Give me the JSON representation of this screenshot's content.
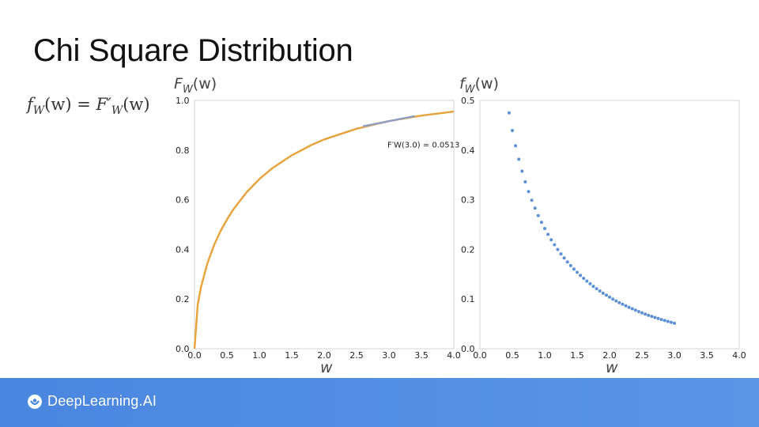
{
  "slide": {
    "title": "Chi Square Distribution",
    "formula": {
      "lhs": "f",
      "lhs_sub": "W",
      "arg": "(w)",
      "eq": " = ",
      "rhs": "F′",
      "rhs_sub": "W",
      "rhs_arg": "(w)"
    }
  },
  "footer": {
    "brand": "DeepLearning.AI",
    "logo_icon": "deeplearning-logo-icon"
  },
  "chart_data": [
    {
      "type": "line",
      "ylabel": "F_W(w)",
      "xlabel": "w",
      "xlim": [
        0,
        4.0
      ],
      "ylim": [
        0,
        1.0
      ],
      "xticks": [
        "0.0",
        "0.5",
        "1.0",
        "1.5",
        "2.0",
        "2.5",
        "3.0",
        "3.5",
        "4.0"
      ],
      "yticks": [
        "0.0",
        "0.2",
        "0.4",
        "0.6",
        "0.8",
        "1.0"
      ],
      "colors": {
        "curve": "#e8a33a",
        "tangent": "#8f9fc4"
      },
      "x": [
        0.0,
        0.05,
        0.1,
        0.2,
        0.3,
        0.4,
        0.5,
        0.6,
        0.8,
        1.0,
        1.2,
        1.5,
        1.8,
        2.0,
        2.5,
        3.0,
        3.5,
        4.0
      ],
      "values": [
        0.0,
        0.177,
        0.248,
        0.345,
        0.416,
        0.473,
        0.52,
        0.561,
        0.629,
        0.683,
        0.727,
        0.779,
        0.82,
        0.843,
        0.886,
        0.917,
        0.939,
        0.955
      ],
      "tangent": {
        "x": [
          2.6,
          3.4
        ],
        "y": [
          0.896,
          0.937
        ]
      },
      "annotation": {
        "text": "F′W(3.0) = 0.0513",
        "x": 3.0,
        "y": 0.81
      }
    },
    {
      "type": "scatter",
      "ylabel": "f_W(w)",
      "xlabel": "w",
      "xlim": [
        0,
        4.0
      ],
      "ylim": [
        0,
        0.5
      ],
      "xticks": [
        "0.0",
        "0.5",
        "1.0",
        "1.5",
        "2.0",
        "2.5",
        "3.0",
        "3.5",
        "4.0"
      ],
      "yticks": [
        "0.0",
        "0.1",
        "0.2",
        "0.3",
        "0.4",
        "0.5"
      ],
      "colors": {
        "points": "#5b8fd6"
      },
      "x_start": 0.45,
      "x_end": 3.0,
      "x_step": 0.05
    }
  ]
}
